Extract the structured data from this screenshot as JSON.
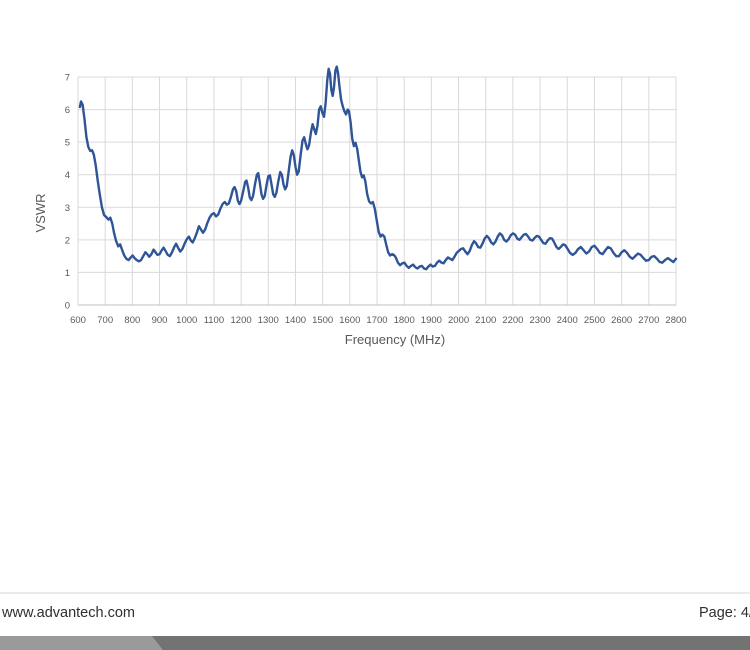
{
  "chart_data": {
    "type": "line",
    "title": "",
    "xlabel": "Frequency (MHz)",
    "ylabel": "VSWR",
    "xlim": [
      600,
      2800
    ],
    "ylim": [
      0,
      7
    ],
    "x_ticks": [
      600,
      700,
      800,
      900,
      1000,
      1100,
      1200,
      1300,
      1400,
      1500,
      1600,
      1700,
      1800,
      1900,
      2000,
      2100,
      2200,
      2300,
      2400,
      2500,
      2600,
      2700,
      2800
    ],
    "y_ticks": [
      0,
      1,
      2,
      3,
      4,
      5,
      6,
      7
    ],
    "grid": true,
    "legend": "none",
    "line_color": "#2F5597",
    "grid_color": "#D9D9D9",
    "axis_line_color": "#BFBFBF",
    "tick_label_color": "#595959",
    "series": [
      {
        "name": "VSWR",
        "points": [
          [
            607,
            6.08
          ],
          [
            611,
            6.25
          ],
          [
            617,
            6.15
          ],
          [
            624,
            5.7
          ],
          [
            631,
            5.15
          ],
          [
            638,
            4.85
          ],
          [
            645,
            4.73
          ],
          [
            652,
            4.75
          ],
          [
            658,
            4.62
          ],
          [
            665,
            4.3
          ],
          [
            672,
            3.85
          ],
          [
            680,
            3.4
          ],
          [
            688,
            3.0
          ],
          [
            696,
            2.76
          ],
          [
            704,
            2.7
          ],
          [
            712,
            2.62
          ],
          [
            719,
            2.68
          ],
          [
            726,
            2.5
          ],
          [
            733,
            2.2
          ],
          [
            740,
            1.97
          ],
          [
            748,
            1.8
          ],
          [
            755,
            1.86
          ],
          [
            762,
            1.7
          ],
          [
            770,
            1.52
          ],
          [
            778,
            1.42
          ],
          [
            786,
            1.38
          ],
          [
            794,
            1.46
          ],
          [
            801,
            1.52
          ],
          [
            808,
            1.44
          ],
          [
            816,
            1.38
          ],
          [
            824,
            1.34
          ],
          [
            832,
            1.38
          ],
          [
            840,
            1.5
          ],
          [
            848,
            1.62
          ],
          [
            855,
            1.56
          ],
          [
            862,
            1.48
          ],
          [
            870,
            1.56
          ],
          [
            878,
            1.7
          ],
          [
            885,
            1.62
          ],
          [
            892,
            1.54
          ],
          [
            900,
            1.56
          ],
          [
            908,
            1.68
          ],
          [
            915,
            1.76
          ],
          [
            922,
            1.66
          ],
          [
            930,
            1.54
          ],
          [
            938,
            1.5
          ],
          [
            946,
            1.62
          ],
          [
            954,
            1.78
          ],
          [
            961,
            1.88
          ],
          [
            968,
            1.76
          ],
          [
            976,
            1.64
          ],
          [
            984,
            1.72
          ],
          [
            992,
            1.88
          ],
          [
            1000,
            2.02
          ],
          [
            1008,
            2.1
          ],
          [
            1015,
            1.98
          ],
          [
            1022,
            1.92
          ],
          [
            1030,
            2.06
          ],
          [
            1038,
            2.24
          ],
          [
            1045,
            2.42
          ],
          [
            1052,
            2.32
          ],
          [
            1060,
            2.22
          ],
          [
            1068,
            2.32
          ],
          [
            1076,
            2.52
          ],
          [
            1084,
            2.68
          ],
          [
            1092,
            2.78
          ],
          [
            1100,
            2.82
          ],
          [
            1108,
            2.72
          ],
          [
            1116,
            2.78
          ],
          [
            1124,
            2.96
          ],
          [
            1132,
            3.1
          ],
          [
            1140,
            3.16
          ],
          [
            1148,
            3.08
          ],
          [
            1155,
            3.12
          ],
          [
            1162,
            3.3
          ],
          [
            1170,
            3.55
          ],
          [
            1176,
            3.62
          ],
          [
            1182,
            3.5
          ],
          [
            1188,
            3.2
          ],
          [
            1194,
            3.1
          ],
          [
            1200,
            3.2
          ],
          [
            1208,
            3.5
          ],
          [
            1215,
            3.78
          ],
          [
            1220,
            3.82
          ],
          [
            1226,
            3.6
          ],
          [
            1232,
            3.3
          ],
          [
            1238,
            3.22
          ],
          [
            1244,
            3.35
          ],
          [
            1251,
            3.7
          ],
          [
            1258,
            4.0
          ],
          [
            1263,
            4.05
          ],
          [
            1269,
            3.75
          ],
          [
            1275,
            3.4
          ],
          [
            1281,
            3.26
          ],
          [
            1287,
            3.35
          ],
          [
            1294,
            3.7
          ],
          [
            1300,
            3.95
          ],
          [
            1306,
            3.98
          ],
          [
            1312,
            3.7
          ],
          [
            1318,
            3.4
          ],
          [
            1324,
            3.32
          ],
          [
            1330,
            3.45
          ],
          [
            1337,
            3.8
          ],
          [
            1344,
            4.08
          ],
          [
            1350,
            4.0
          ],
          [
            1356,
            3.7
          ],
          [
            1362,
            3.55
          ],
          [
            1368,
            3.65
          ],
          [
            1375,
            4.1
          ],
          [
            1382,
            4.55
          ],
          [
            1388,
            4.75
          ],
          [
            1394,
            4.6
          ],
          [
            1400,
            4.25
          ],
          [
            1406,
            4.0
          ],
          [
            1412,
            4.1
          ],
          [
            1419,
            4.6
          ],
          [
            1426,
            5.05
          ],
          [
            1432,
            5.15
          ],
          [
            1438,
            4.95
          ],
          [
            1444,
            4.78
          ],
          [
            1450,
            4.9
          ],
          [
            1457,
            5.3
          ],
          [
            1463,
            5.55
          ],
          [
            1469,
            5.4
          ],
          [
            1475,
            5.25
          ],
          [
            1481,
            5.5
          ],
          [
            1487,
            6.0
          ],
          [
            1493,
            6.1
          ],
          [
            1499,
            5.9
          ],
          [
            1505,
            5.78
          ],
          [
            1511,
            6.2
          ],
          [
            1517,
            6.9
          ],
          [
            1522,
            7.25
          ],
          [
            1527,
            7.1
          ],
          [
            1532,
            6.6
          ],
          [
            1537,
            6.42
          ],
          [
            1542,
            6.7
          ],
          [
            1547,
            7.2
          ],
          [
            1552,
            7.32
          ],
          [
            1557,
            7.1
          ],
          [
            1562,
            6.7
          ],
          [
            1568,
            6.3
          ],
          [
            1574,
            6.1
          ],
          [
            1580,
            5.95
          ],
          [
            1586,
            5.85
          ],
          [
            1592,
            6.0
          ],
          [
            1597,
            5.95
          ],
          [
            1603,
            5.6
          ],
          [
            1609,
            5.1
          ],
          [
            1615,
            4.88
          ],
          [
            1621,
            4.98
          ],
          [
            1627,
            4.8
          ],
          [
            1633,
            4.45
          ],
          [
            1639,
            4.1
          ],
          [
            1645,
            3.92
          ],
          [
            1651,
            3.98
          ],
          [
            1657,
            3.8
          ],
          [
            1664,
            3.4
          ],
          [
            1671,
            3.18
          ],
          [
            1678,
            3.12
          ],
          [
            1685,
            3.16
          ],
          [
            1692,
            2.95
          ],
          [
            1699,
            2.6
          ],
          [
            1706,
            2.25
          ],
          [
            1713,
            2.1
          ],
          [
            1720,
            2.16
          ],
          [
            1727,
            2.1
          ],
          [
            1734,
            1.85
          ],
          [
            1741,
            1.62
          ],
          [
            1748,
            1.52
          ],
          [
            1755,
            1.56
          ],
          [
            1762,
            1.54
          ],
          [
            1769,
            1.46
          ],
          [
            1777,
            1.3
          ],
          [
            1785,
            1.22
          ],
          [
            1793,
            1.28
          ],
          [
            1801,
            1.3
          ],
          [
            1809,
            1.2
          ],
          [
            1817,
            1.14
          ],
          [
            1825,
            1.2
          ],
          [
            1833,
            1.24
          ],
          [
            1841,
            1.16
          ],
          [
            1849,
            1.12
          ],
          [
            1857,
            1.18
          ],
          [
            1865,
            1.2
          ],
          [
            1873,
            1.12
          ],
          [
            1881,
            1.1
          ],
          [
            1889,
            1.18
          ],
          [
            1897,
            1.24
          ],
          [
            1905,
            1.18
          ],
          [
            1913,
            1.2
          ],
          [
            1921,
            1.3
          ],
          [
            1929,
            1.36
          ],
          [
            1937,
            1.3
          ],
          [
            1945,
            1.28
          ],
          [
            1953,
            1.38
          ],
          [
            1961,
            1.46
          ],
          [
            1969,
            1.42
          ],
          [
            1977,
            1.38
          ],
          [
            1985,
            1.48
          ],
          [
            1993,
            1.6
          ],
          [
            2001,
            1.66
          ],
          [
            2009,
            1.72
          ],
          [
            2017,
            1.74
          ],
          [
            2025,
            1.64
          ],
          [
            2033,
            1.56
          ],
          [
            2041,
            1.66
          ],
          [
            2049,
            1.84
          ],
          [
            2057,
            1.96
          ],
          [
            2064,
            1.9
          ],
          [
            2072,
            1.78
          ],
          [
            2080,
            1.76
          ],
          [
            2088,
            1.88
          ],
          [
            2096,
            2.04
          ],
          [
            2104,
            2.12
          ],
          [
            2112,
            2.05
          ],
          [
            2120,
            1.92
          ],
          [
            2128,
            1.86
          ],
          [
            2136,
            1.95
          ],
          [
            2144,
            2.1
          ],
          [
            2152,
            2.2
          ],
          [
            2160,
            2.14
          ],
          [
            2168,
            2.0
          ],
          [
            2176,
            1.95
          ],
          [
            2184,
            2.02
          ],
          [
            2192,
            2.14
          ],
          [
            2200,
            2.2
          ],
          [
            2208,
            2.16
          ],
          [
            2216,
            2.04
          ],
          [
            2224,
            2.0
          ],
          [
            2232,
            2.08
          ],
          [
            2240,
            2.16
          ],
          [
            2248,
            2.18
          ],
          [
            2256,
            2.1
          ],
          [
            2264,
            2.0
          ],
          [
            2272,
            1.98
          ],
          [
            2280,
            2.06
          ],
          [
            2288,
            2.12
          ],
          [
            2296,
            2.1
          ],
          [
            2304,
            2.0
          ],
          [
            2312,
            1.9
          ],
          [
            2320,
            1.88
          ],
          [
            2328,
            1.98
          ],
          [
            2336,
            2.05
          ],
          [
            2344,
            2.04
          ],
          [
            2352,
            1.92
          ],
          [
            2360,
            1.78
          ],
          [
            2368,
            1.72
          ],
          [
            2376,
            1.78
          ],
          [
            2384,
            1.86
          ],
          [
            2392,
            1.84
          ],
          [
            2400,
            1.74
          ],
          [
            2410,
            1.6
          ],
          [
            2420,
            1.54
          ],
          [
            2430,
            1.6
          ],
          [
            2440,
            1.72
          ],
          [
            2450,
            1.78
          ],
          [
            2460,
            1.68
          ],
          [
            2470,
            1.58
          ],
          [
            2480,
            1.64
          ],
          [
            2490,
            1.78
          ],
          [
            2500,
            1.82
          ],
          [
            2510,
            1.72
          ],
          [
            2520,
            1.6
          ],
          [
            2530,
            1.56
          ],
          [
            2540,
            1.68
          ],
          [
            2550,
            1.78
          ],
          [
            2560,
            1.74
          ],
          [
            2570,
            1.6
          ],
          [
            2580,
            1.5
          ],
          [
            2590,
            1.5
          ],
          [
            2600,
            1.62
          ],
          [
            2610,
            1.68
          ],
          [
            2620,
            1.6
          ],
          [
            2630,
            1.48
          ],
          [
            2640,
            1.42
          ],
          [
            2650,
            1.5
          ],
          [
            2660,
            1.58
          ],
          [
            2670,
            1.54
          ],
          [
            2680,
            1.44
          ],
          [
            2690,
            1.36
          ],
          [
            2700,
            1.38
          ],
          [
            2710,
            1.48
          ],
          [
            2720,
            1.5
          ],
          [
            2730,
            1.42
          ],
          [
            2740,
            1.32
          ],
          [
            2750,
            1.3
          ],
          [
            2760,
            1.38
          ],
          [
            2770,
            1.44
          ],
          [
            2780,
            1.38
          ],
          [
            2790,
            1.32
          ],
          [
            2800,
            1.42
          ]
        ]
      }
    ]
  },
  "footer": {
    "website": "www.advantech.com",
    "page_label": "Page: 4/"
  },
  "footer_bar": {
    "left_color": "#9a9a9a",
    "right_color": "#737373"
  }
}
